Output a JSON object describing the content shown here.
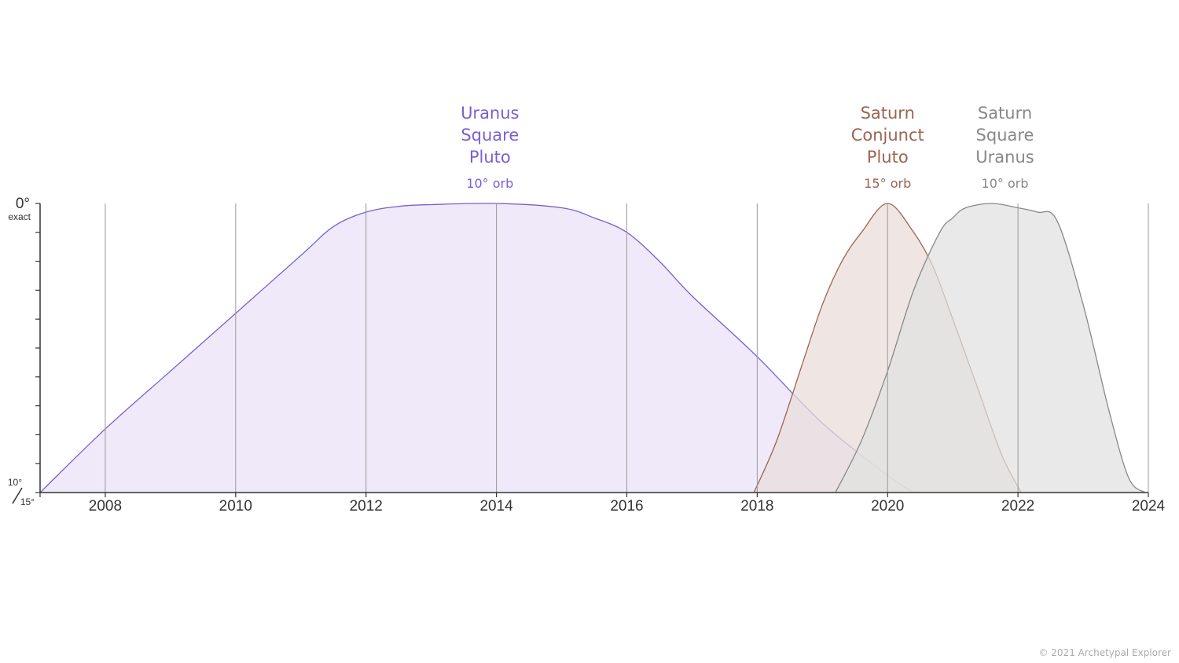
{
  "chart_data": {
    "type": "area",
    "x_axis": {
      "range": [
        2007,
        2024
      ],
      "ticks": [
        "2008",
        "2010",
        "2012",
        "2014",
        "2016",
        "2018",
        "2020",
        "2022",
        "2024"
      ]
    },
    "y_axis": {
      "top_label": "0°",
      "top_sublabel": "exact",
      "bottom_label_a": "10°",
      "bottom_label_b": "15°",
      "note": "closeness to exact aspect; 0 = exact, 1 = at orb limit"
    },
    "grid": true,
    "series": [
      {
        "name_lines": [
          "Uranus",
          "Square",
          "Pluto"
        ],
        "orb_label": "10° orb",
        "label_x": 2013.9,
        "color": "#7b5fcf",
        "fill": "#e9e1f6",
        "points": [
          [
            2007.0,
            1.0
          ],
          [
            2008.0,
            0.78
          ],
          [
            2009.0,
            0.58
          ],
          [
            2010.0,
            0.38
          ],
          [
            2011.0,
            0.18
          ],
          [
            2011.5,
            0.08
          ],
          [
            2012.0,
            0.03
          ],
          [
            2012.5,
            0.01
          ],
          [
            2013.0,
            0.004
          ],
          [
            2014.0,
            0.0
          ],
          [
            2015.0,
            0.015
          ],
          [
            2015.5,
            0.05
          ],
          [
            2016.0,
            0.1
          ],
          [
            2016.5,
            0.2
          ],
          [
            2017.0,
            0.32
          ],
          [
            2018.0,
            0.53
          ],
          [
            2019.0,
            0.76
          ],
          [
            2020.0,
            0.94
          ],
          [
            2020.4,
            1.0
          ]
        ]
      },
      {
        "name_lines": [
          "Saturn",
          "Conjunct",
          "Pluto"
        ],
        "orb_label": "15° orb",
        "label_x": 2020.0,
        "color": "#9b6450",
        "fill": "#e9dcd9",
        "points": [
          [
            2017.95,
            1.0
          ],
          [
            2018.3,
            0.82
          ],
          [
            2018.7,
            0.55
          ],
          [
            2019.0,
            0.35
          ],
          [
            2019.3,
            0.2
          ],
          [
            2019.6,
            0.1
          ],
          [
            2020.0,
            0.0
          ],
          [
            2020.4,
            0.1
          ],
          [
            2020.7,
            0.22
          ],
          [
            2021.0,
            0.4
          ],
          [
            2021.4,
            0.65
          ],
          [
            2021.75,
            0.87
          ],
          [
            2022.05,
            1.0
          ]
        ]
      },
      {
        "name_lines": [
          "Saturn",
          "Square",
          "Uranus"
        ],
        "orb_label": "10° orb",
        "label_x": 2021.8,
        "color": "#888888",
        "fill": "#e1e1e1",
        "points": [
          [
            2019.2,
            1.0
          ],
          [
            2019.6,
            0.82
          ],
          [
            2020.0,
            0.58
          ],
          [
            2020.4,
            0.3
          ],
          [
            2020.8,
            0.1
          ],
          [
            2021.0,
            0.05
          ],
          [
            2021.2,
            0.015
          ],
          [
            2021.6,
            0.0
          ],
          [
            2022.0,
            0.015
          ],
          [
            2022.3,
            0.03
          ],
          [
            2022.6,
            0.06
          ],
          [
            2023.0,
            0.35
          ],
          [
            2023.4,
            0.72
          ],
          [
            2023.7,
            0.95
          ],
          [
            2023.95,
            1.0
          ]
        ]
      }
    ]
  },
  "footer": {
    "copyright": "© 2021 Archetypal Explorer"
  }
}
